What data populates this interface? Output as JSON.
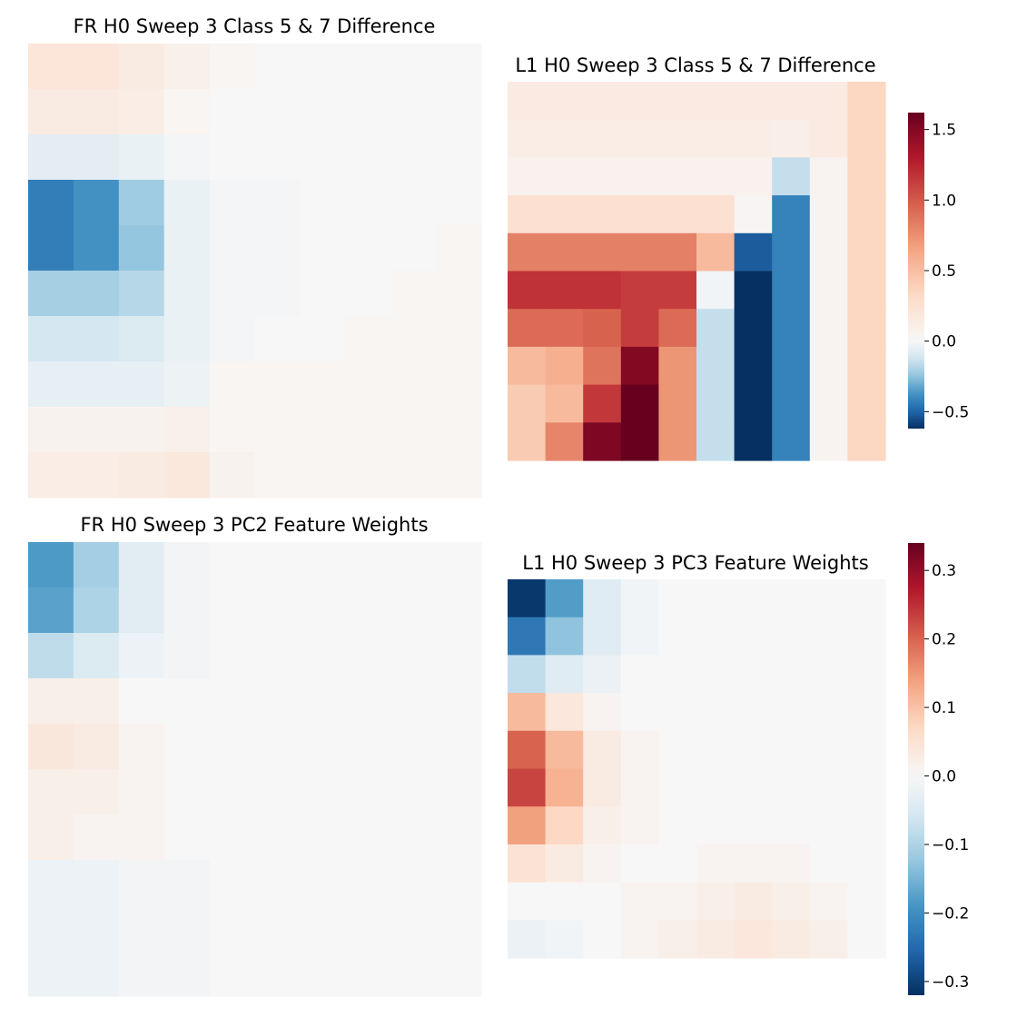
{
  "chart_data": [
    {
      "type": "heatmap",
      "title": "FR H0 Sweep 3 Class 5 & 7 Difference",
      "rows": 10,
      "cols": 10,
      "colorscale": "RdBu_r",
      "vmin": -0.56,
      "vmax": 0.56,
      "show_ticks": false,
      "values": [
        [
          0.07,
          0.07,
          0.05,
          0.03,
          0.01,
          0.0,
          0.0,
          0.0,
          0.0,
          0.0
        ],
        [
          0.05,
          0.05,
          0.04,
          0.01,
          0.0,
          0.0,
          0.0,
          0.0,
          0.0,
          0.0
        ],
        [
          -0.06,
          -0.06,
          -0.04,
          -0.01,
          0.0,
          0.0,
          0.0,
          0.0,
          0.0,
          0.0
        ],
        [
          -0.39,
          -0.34,
          -0.2,
          -0.04,
          -0.01,
          -0.01,
          0.0,
          0.0,
          0.0,
          0.0
        ],
        [
          -0.39,
          -0.34,
          -0.22,
          -0.04,
          -0.01,
          -0.01,
          0.0,
          0.0,
          0.0,
          0.01
        ],
        [
          -0.19,
          -0.19,
          -0.16,
          -0.04,
          -0.01,
          -0.01,
          0.0,
          0.0,
          0.01,
          0.01
        ],
        [
          -0.1,
          -0.1,
          -0.08,
          -0.04,
          -0.01,
          0.0,
          0.0,
          0.01,
          0.01,
          0.01
        ],
        [
          -0.05,
          -0.05,
          -0.05,
          -0.03,
          0.01,
          0.01,
          0.01,
          0.01,
          0.01,
          0.01
        ],
        [
          0.02,
          0.02,
          0.02,
          0.03,
          0.01,
          0.01,
          0.01,
          0.01,
          0.01,
          0.01
        ],
        [
          0.04,
          0.04,
          0.05,
          0.06,
          0.02,
          0.01,
          0.01,
          0.01,
          0.01,
          0.01
        ]
      ]
    },
    {
      "type": "heatmap",
      "title": "L1 H0 Sweep 3 Class 5 & 7 Difference",
      "rows": 10,
      "cols": 10,
      "colorscale": "RdBu_r",
      "vmin": -0.62,
      "vmax": 1.62,
      "colorbar_ticks": [
        "1.5",
        "1.0",
        "0.5",
        "0.0",
        "−0.5"
      ],
      "colorbar_tick_values": [
        1.5,
        1.0,
        0.5,
        0.0,
        -0.5
      ],
      "values": [
        [
          0.15,
          0.15,
          0.15,
          0.15,
          0.15,
          0.15,
          0.15,
          0.15,
          0.15,
          0.35
        ],
        [
          0.12,
          0.12,
          0.12,
          0.12,
          0.12,
          0.12,
          0.12,
          0.1,
          0.15,
          0.35
        ],
        [
          0.07,
          0.07,
          0.07,
          0.07,
          0.07,
          0.07,
          0.07,
          -0.15,
          0.05,
          0.35
        ],
        [
          0.25,
          0.25,
          0.25,
          0.25,
          0.25,
          0.25,
          0.03,
          -0.42,
          0.05,
          0.35
        ],
        [
          0.82,
          0.82,
          0.82,
          0.82,
          0.82,
          0.52,
          -0.52,
          -0.42,
          0.05,
          0.35
        ],
        [
          1.18,
          1.18,
          1.18,
          1.13,
          1.13,
          -0.02,
          -0.62,
          -0.42,
          0.05,
          0.35
        ],
        [
          0.92,
          0.92,
          0.96,
          1.13,
          0.92,
          -0.15,
          -0.62,
          -0.42,
          0.05,
          0.35
        ],
        [
          0.52,
          0.58,
          0.88,
          1.5,
          0.72,
          -0.15,
          -0.62,
          -0.42,
          0.05,
          0.35
        ],
        [
          0.42,
          0.52,
          1.15,
          1.62,
          0.72,
          -0.15,
          -0.62,
          -0.42,
          0.05,
          0.35
        ],
        [
          0.42,
          0.8,
          1.52,
          1.62,
          0.72,
          -0.15,
          -0.62,
          -0.42,
          0.05,
          0.35
        ]
      ]
    },
    {
      "type": "heatmap",
      "title": "FR H0 Sweep 3 PC2 Feature Weights",
      "rows": 10,
      "cols": 10,
      "colorscale": "RdBu_r",
      "vmin": -0.35,
      "vmax": 0.35,
      "show_ticks": false,
      "values": [
        [
          -0.2,
          -0.12,
          -0.04,
          -0.01,
          0.0,
          0.0,
          0.0,
          0.0,
          0.0,
          0.0
        ],
        [
          -0.19,
          -0.11,
          -0.04,
          -0.01,
          0.0,
          0.0,
          0.0,
          0.0,
          0.0,
          0.0
        ],
        [
          -0.09,
          -0.05,
          -0.02,
          -0.01,
          0.0,
          0.0,
          0.0,
          0.0,
          0.0,
          0.0
        ],
        [
          0.02,
          0.02,
          0.0,
          0.0,
          0.0,
          0.0,
          0.0,
          0.0,
          0.0,
          0.0
        ],
        [
          0.04,
          0.03,
          0.01,
          0.0,
          0.0,
          0.0,
          0.0,
          0.0,
          0.0,
          0.0
        ],
        [
          0.02,
          0.02,
          0.01,
          0.0,
          0.0,
          0.0,
          0.0,
          0.0,
          0.0,
          0.0
        ],
        [
          0.02,
          0.01,
          0.01,
          0.0,
          0.0,
          0.0,
          0.0,
          0.0,
          0.0,
          0.0
        ],
        [
          -0.02,
          -0.02,
          -0.01,
          -0.01,
          0.0,
          0.0,
          0.0,
          0.0,
          0.0,
          0.0
        ],
        [
          -0.02,
          -0.02,
          -0.01,
          -0.01,
          0.0,
          0.0,
          0.0,
          0.0,
          0.0,
          0.0
        ],
        [
          -0.02,
          -0.02,
          -0.01,
          -0.01,
          0.0,
          0.0,
          0.0,
          0.0,
          0.0,
          0.0
        ]
      ]
    },
    {
      "type": "heatmap",
      "title": "L1 H0 Sweep 3 PC3 Feature Weights",
      "rows": 10,
      "cols": 10,
      "colorscale": "RdBu_r",
      "vmin": -0.32,
      "vmax": 0.34,
      "colorbar_ticks": [
        "0.3",
        "0.2",
        "0.1",
        "0.0",
        "−0.1",
        "−0.2",
        "−0.3"
      ],
      "colorbar_tick_values": [
        0.3,
        0.2,
        0.1,
        0.0,
        -0.1,
        -0.2,
        -0.3
      ],
      "values": [
        [
          -0.31,
          -0.18,
          -0.04,
          -0.01,
          0.0,
          0.0,
          0.0,
          0.0,
          0.0,
          0.0
        ],
        [
          -0.23,
          -0.13,
          -0.04,
          -0.01,
          0.0,
          0.0,
          0.0,
          0.0,
          0.0,
          0.0
        ],
        [
          -0.08,
          -0.04,
          -0.02,
          0.0,
          0.0,
          0.0,
          0.0,
          0.0,
          0.0,
          0.0
        ],
        [
          0.11,
          0.04,
          0.01,
          0.0,
          0.0,
          0.0,
          0.0,
          0.0,
          0.0,
          0.0
        ],
        [
          0.2,
          0.11,
          0.03,
          0.01,
          0.0,
          0.0,
          0.0,
          0.0,
          0.0,
          0.0
        ],
        [
          0.23,
          0.12,
          0.03,
          0.01,
          0.0,
          0.0,
          0.0,
          0.0,
          0.0,
          0.0
        ],
        [
          0.14,
          0.07,
          0.02,
          0.01,
          0.0,
          0.0,
          0.0,
          0.0,
          0.0,
          0.0
        ],
        [
          0.05,
          0.03,
          0.01,
          0.0,
          0.0,
          0.01,
          0.01,
          0.01,
          0.0,
          0.0
        ],
        [
          0.0,
          0.0,
          0.0,
          0.01,
          0.01,
          0.02,
          0.03,
          0.02,
          0.01,
          0.0
        ],
        [
          -0.02,
          -0.01,
          0.0,
          0.01,
          0.02,
          0.03,
          0.04,
          0.03,
          0.02,
          0.0
        ]
      ]
    }
  ]
}
